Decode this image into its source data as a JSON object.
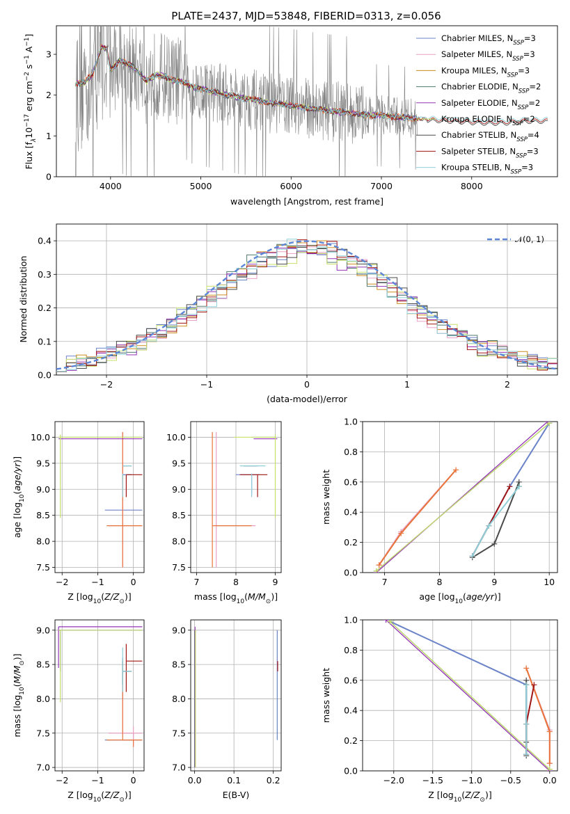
{
  "title": "PLATE=2437, MJD=53848, FIBERID=0313, z=0.056",
  "colors": {
    "Chabrier MILES": "#6b83c8",
    "Salpeter MILES": "#e8a0c4",
    "Kroupa MILES": "#cc8b1d",
    "Chabrier ELODIE": "#4f7a70",
    "Salpeter ELODIE": "#9333b5",
    "Kroupa ELODIE": "#c6e06a",
    "Chabrier STELIB": "#4a4a4a",
    "Salpeter STELIB": "#a01515",
    "Kroupa STELIB": "#8fd0d8",
    "data": "#808080",
    "normal": "#5b86d6",
    "orange": "#e8743a"
  },
  "chart_data": [
    {
      "id": "spectrum",
      "type": "line",
      "xlabel": "wavelength [Angstrom, rest frame]",
      "ylabel_parts": [
        "Flux [f",
        "λ",
        "10",
        "−17",
        " erg cm",
        "−2",
        " s",
        "−1",
        " A",
        "−1",
        "]"
      ],
      "xlim": [
        3400,
        8950
      ],
      "ylim": [
        0,
        3.7
      ],
      "xticks": [
        "4000",
        "5000",
        "6000",
        "7000",
        "8000"
      ],
      "xtick_values": [
        4000,
        5000,
        6000,
        7000,
        8000
      ],
      "yticks": [
        "0",
        "1",
        "2",
        "3"
      ],
      "ytick_values": [
        0,
        1,
        2,
        3
      ],
      "grid": false,
      "legend_position": "top-right",
      "legend": [
        {
          "name": "Chabrier MILES",
          "nssp": "3"
        },
        {
          "name": "Salpeter MILES",
          "nssp": "3"
        },
        {
          "name": "Kroupa MILES",
          "nssp": "3"
        },
        {
          "name": "Chabrier ELODIE",
          "nssp": "2"
        },
        {
          "name": "Salpeter ELODIE",
          "nssp": "2"
        },
        {
          "name": "Kroupa ELODIE",
          "nssp": "2"
        },
        {
          "name": "Chabrier STELIB",
          "nssp": "4"
        },
        {
          "name": "Salpeter STELIB",
          "nssp": "3"
        },
        {
          "name": "Kroupa STELIB",
          "nssp": "3"
        }
      ],
      "nssp_label": "N",
      "nssp_sub": "SSP",
      "data_range": [
        3610,
        7400
      ],
      "model_continuum": {
        "x": [
          3610,
          3700,
          3800,
          3900,
          3960,
          4000,
          4100,
          4200,
          4300,
          4400,
          4500,
          4600,
          4700,
          4800,
          4900,
          5000,
          5200,
          5400,
          5600,
          5800,
          6000,
          6200,
          6400,
          6600,
          6800,
          7000,
          7200,
          7400,
          7600,
          7800,
          8000,
          8200,
          8400,
          8600,
          8800
        ],
        "y": [
          2.3,
          2.3,
          2.5,
          3.2,
          3.1,
          2.6,
          2.85,
          2.75,
          2.6,
          2.35,
          2.5,
          2.45,
          2.35,
          2.35,
          2.2,
          2.15,
          2.05,
          1.95,
          1.88,
          1.8,
          1.75,
          1.68,
          1.62,
          1.57,
          1.52,
          1.5,
          1.46,
          1.42,
          1.4,
          1.38,
          1.35,
          1.33,
          1.34,
          1.38,
          1.38
        ]
      }
    },
    {
      "id": "residuals",
      "type": "bar",
      "xlabel": "(data-model)/error",
      "ylabel": "Normed distribution",
      "xlim": [
        -2.5,
        2.5
      ],
      "ylim": [
        0,
        0.45
      ],
      "xticks": [
        "−2",
        "−1",
        "0",
        "1",
        "2"
      ],
      "xtick_values": [
        -2,
        -1,
        0,
        1,
        2
      ],
      "yticks": [
        "0.0",
        "0.1",
        "0.2",
        "0.3",
        "0.4"
      ],
      "ytick_values": [
        0,
        0.1,
        0.2,
        0.3,
        0.4
      ],
      "grid": true,
      "legend_position": "top-right",
      "legend": "𝒩(0, 1)",
      "bin_width": 0.1
    },
    {
      "id": "age-vs-Z",
      "type": "scatter",
      "xlabel": "Z [log10(Z/Z⊙)]",
      "ylabel": "age [log10(age/yr)]",
      "xlim": [
        -2.2,
        0.3
      ],
      "ylim": [
        7.4,
        10.3
      ],
      "xticks": [
        "−2",
        "−1",
        "0"
      ],
      "xtick_values": [
        -2,
        -1,
        0
      ],
      "yticks": [
        "7.5",
        "8.0",
        "8.5",
        "9.0",
        "9.5",
        "10.0"
      ],
      "ytick_values": [
        7.5,
        8,
        8.5,
        9,
        9.5,
        10
      ],
      "grid": true
    },
    {
      "id": "age-vs-mass",
      "type": "scatter",
      "xlabel": "mass [log10(M/M⊙)]",
      "xlim": [
        6.85,
        9.15
      ],
      "ylim": [
        7.4,
        10.3
      ],
      "xticks": [
        "7",
        "8",
        "9"
      ],
      "xtick_values": [
        7,
        8,
        9
      ],
      "yticks": [
        "7.5",
        "8.0",
        "8.5",
        "9.0",
        "9.5",
        "10.0"
      ],
      "ytick_values": [
        7.5,
        8,
        8.5,
        9,
        9.5,
        10
      ],
      "grid": true
    },
    {
      "id": "weight-vs-age",
      "type": "line",
      "xlabel": "age [log10(age/yr)]",
      "ylabel": "mass weight",
      "xlim": [
        6.6,
        10.15
      ],
      "ylim": [
        0,
        1
      ],
      "xticks": [
        "7",
        "8",
        "9",
        "10"
      ],
      "xtick_values": [
        7,
        8,
        9,
        10
      ],
      "yticks": [
        "0.0",
        "0.2",
        "0.4",
        "0.6",
        "0.8",
        "1.0"
      ],
      "ytick_values": [
        0,
        0.2,
        0.4,
        0.6,
        0.8,
        1
      ],
      "grid": true
    },
    {
      "id": "mass-vs-Z",
      "type": "scatter",
      "xlabel": "Z [log10(Z/Z⊙)]",
      "ylabel": "mass [log10(M/M⊙)]",
      "xlim": [
        -2.2,
        0.3
      ],
      "ylim": [
        6.95,
        9.15
      ],
      "xticks": [
        "−2",
        "−1",
        "0"
      ],
      "xtick_values": [
        -2,
        -1,
        0
      ],
      "yticks": [
        "7.0",
        "7.5",
        "8.0",
        "8.5",
        "9.0"
      ],
      "ytick_values": [
        7,
        7.5,
        8,
        8.5,
        9
      ],
      "grid": true
    },
    {
      "id": "mass-vs-ebv",
      "type": "scatter",
      "xlabel": "E(B-V)",
      "xlim": [
        -0.01,
        0.22
      ],
      "ylim": [
        6.95,
        9.15
      ],
      "xticks": [
        "0.0",
        "0.1",
        "0.2"
      ],
      "xtick_values": [
        0,
        0.1,
        0.2
      ],
      "yticks": [
        "7.0",
        "7.5",
        "8.0",
        "8.5",
        "9.0"
      ],
      "ytick_values": [
        7,
        7.5,
        8,
        8.5,
        9
      ],
      "grid": true
    },
    {
      "id": "weight-vs-Z",
      "type": "line",
      "xlabel": "Z [log10(Z/Z⊙)]",
      "ylabel": "mass weight",
      "xlim": [
        -2.4,
        0.1
      ],
      "ylim": [
        0,
        1
      ],
      "xticks": [
        "−2.0",
        "−1.5",
        "−1.0",
        "−0.5",
        "0.0"
      ],
      "xtick_values": [
        -2,
        -1.5,
        -1,
        -0.5,
        0
      ],
      "yticks": [
        "0.0",
        "0.2",
        "0.4",
        "0.6",
        "0.8",
        "1.0"
      ],
      "ytick_values": [
        0,
        0.2,
        0.4,
        0.6,
        0.8,
        1
      ],
      "grid": true
    }
  ],
  "solutions": [
    {
      "model": "Chabrier MILES",
      "components": [
        {
          "age": 10.0,
          "Z": -2.05,
          "mass": 9.0,
          "weight": 0.99,
          "age_err": [
            10.0,
            10.0
          ],
          "Z_err": [
            -2.1,
            0.25
          ],
          "mass_err": [
            8.4,
            9.0
          ]
        },
        {
          "age": 9.28,
          "Z": -0.3,
          "mass": 8.4,
          "weight": 0.57,
          "age_err": [
            8.9,
            9.3
          ],
          "Z_err": [
            -0.3,
            -0.05
          ],
          "mass_err": [
            8.0,
            8.6
          ]
        },
        {
          "age": 8.6,
          "Z": -0.3,
          "mass": 7.4,
          "weight": 0.11,
          "age_err": [
            8.6,
            8.6
          ],
          "Z_err": [
            -0.8,
            0.25
          ],
          "mass_err": [
            7.4,
            7.4
          ]
        }
      ]
    },
    {
      "model": "Salpeter MILES",
      "components": [
        {
          "age": 8.3,
          "Z": -0.3,
          "mass": 7.5,
          "weight": 0.68,
          "age_err": [
            7.5,
            10.1
          ],
          "Z_err": [
            -0.7,
            0.25
          ],
          "mass_err": [
            7.5,
            8.5
          ]
        },
        {
          "age": 7.3,
          "Z": 0.0,
          "mass": 7.5,
          "weight": 0.27,
          "age_err": [
            7.3,
            7.3
          ],
          "Z_err": [
            -0.3,
            0.0
          ],
          "mass_err": [
            7.3,
            7.5
          ]
        },
        {
          "age": 6.9,
          "Z": 0.0,
          "mass": 7.5,
          "weight": 0.05,
          "age_err": [
            6.9,
            6.9
          ],
          "Z_err": [
            0.0,
            0.0
          ],
          "mass_err": [
            7.4,
            7.6
          ]
        }
      ]
    },
    {
      "model": "Kroupa MILES",
      "components": [
        {
          "age": 8.3,
          "Z": -0.3,
          "mass": 7.4,
          "weight": 0.68,
          "age_err": [
            7.5,
            10.1
          ],
          "Z_err": [
            -0.75,
            0.25
          ],
          "mass_err": [
            7.4,
            8.4
          ]
        },
        {
          "age": 7.3,
          "Z": 0.0,
          "mass": 7.4,
          "weight": 0.26,
          "age_err": [
            7.3,
            7.3
          ],
          "Z_err": [
            -0.3,
            0.0
          ],
          "mass_err": [
            7.3,
            7.4
          ]
        },
        {
          "age": 6.9,
          "Z": 0.0,
          "mass": 7.4,
          "weight": 0.05,
          "age_err": [
            6.9,
            6.9
          ],
          "Z_err": [
            0.0,
            0.0
          ],
          "mass_err": [
            7.4,
            7.4
          ]
        }
      ]
    },
    {
      "model": "Chabrier ELODIE",
      "components": [
        {
          "age": 10.0,
          "Z": -2.05,
          "mass": 9.0,
          "weight": 0.99
        },
        {
          "age": 6.85,
          "Z": 0.0,
          "mass": 7.0,
          "weight": 0.01
        }
      ]
    },
    {
      "model": "Salpeter ELODIE",
      "components": [
        {
          "age": 9.97,
          "Z": -2.1,
          "mass": 9.05,
          "weight": 1.0,
          "age_err": [
            9.97,
            9.97
          ],
          "Z_err": [
            -2.1,
            0.25
          ],
          "mass_err": [
            8.45,
            9.05
          ]
        },
        {
          "age": 6.85,
          "Z": 0.0,
          "mass": 7.0,
          "weight": 0.0
        }
      ]
    },
    {
      "model": "Kroupa ELODIE",
      "components": [
        {
          "age": 10.0,
          "Z": -2.05,
          "mass": 9.0,
          "weight": 0.99,
          "age_err": [
            8.45,
            10.05
          ],
          "Z_err": [
            -2.1,
            0.25
          ],
          "mass_err": [
            7.95,
            9.0
          ]
        },
        {
          "age": 6.85,
          "Z": 0.0,
          "mass": 7.0,
          "weight": 0.01
        }
      ]
    },
    {
      "model": "Chabrier STELIB",
      "components": [
        {
          "age": 9.45,
          "Z": -0.3,
          "mass": 8.4,
          "weight": 0.6,
          "age_err": [
            9.28,
            9.28
          ],
          "Z_err": [
            -0.3,
            -0.05
          ],
          "mass_err": [
            8.2,
            8.55
          ]
        },
        {
          "age": 9.0,
          "Z": -0.3,
          "mass": 8.4,
          "weight": 0.19
        },
        {
          "age": 8.6,
          "Z": -0.3,
          "mass": 8.4,
          "weight": 0.1
        },
        {
          "age": 9.45,
          "Z": -0.3,
          "mass": 8.4,
          "weight": 0.57
        }
      ]
    },
    {
      "model": "Salpeter STELIB",
      "components": [
        {
          "age": 9.28,
          "Z": -0.2,
          "mass": 8.55,
          "weight": 0.57,
          "age_err": [
            8.85,
            9.28
          ],
          "Z_err": [
            -0.2,
            0.25
          ],
          "mass_err": [
            8.1,
            8.8
          ]
        },
        {
          "age": 8.9,
          "Z": -0.3,
          "mass": 8.4,
          "weight": 0.31
        },
        {
          "age": 8.6,
          "Z": -0.3,
          "mass": 8.4,
          "weight": 0.11
        }
      ]
    },
    {
      "model": "Kroupa STELIB",
      "components": [
        {
          "age": 9.45,
          "Z": -0.3,
          "mass": 8.4,
          "weight": 0.57,
          "age_err": [
            8.85,
            9.3
          ],
          "Z_err": [
            -0.3,
            -0.05
          ],
          "mass_err": [
            8.1,
            8.75
          ]
        },
        {
          "age": 8.9,
          "Z": -0.3,
          "mass": 8.4,
          "weight": 0.31
        },
        {
          "age": 8.6,
          "Z": -0.3,
          "mass": 8.4,
          "weight": 0.11
        }
      ]
    }
  ],
  "ebv": [
    {
      "model": "Chabrier MILES",
      "ebv": 0.21
    },
    {
      "model": "Salpeter MILES",
      "ebv": 0.21
    },
    {
      "model": "Kroupa MILES",
      "ebv": 0.21
    },
    {
      "model": "Chabrier ELODIE",
      "ebv": 0.0
    },
    {
      "model": "Salpeter ELODIE",
      "ebv": 0.0
    },
    {
      "model": "Kroupa ELODIE",
      "ebv": 0.0
    },
    {
      "model": "Chabrier STELIB",
      "ebv": 0.0
    },
    {
      "model": "Salpeter STELIB",
      "ebv": 0.21
    },
    {
      "model": "Kroupa STELIB",
      "ebv": 0.0
    }
  ]
}
